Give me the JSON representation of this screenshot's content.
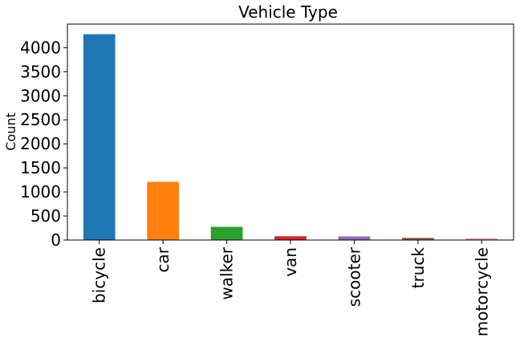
{
  "chart_data": {
    "type": "bar",
    "title": "Vehicle Type",
    "xlabel": "",
    "ylabel": "Count",
    "categories": [
      "bicycle",
      "car",
      "walker",
      "van",
      "scooter",
      "truck",
      "motorcycle"
    ],
    "values": [
      4280,
      1210,
      275,
      80,
      75,
      45,
      30
    ],
    "colors": [
      "#1f77b4",
      "#ff7f0e",
      "#2ca02c",
      "#d62728",
      "#9467bd",
      "#8c564b",
      "#e377c2"
    ],
    "ylim": [
      0,
      4490
    ],
    "yticks": [
      0,
      500,
      1000,
      1500,
      2000,
      2500,
      3000,
      3500,
      4000
    ],
    "grid": false,
    "legend": "none"
  }
}
